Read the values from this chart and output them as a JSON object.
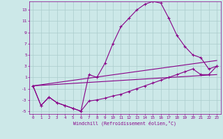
{
  "xlabel": "Windchill (Refroidissement éolien,°C)",
  "bg_color": "#cce8e8",
  "line_color": "#880088",
  "grid_color": "#aacccc",
  "xlim": [
    -0.5,
    23.5
  ],
  "ylim": [
    -5.5,
    14.5
  ],
  "xticks": [
    0,
    1,
    2,
    3,
    4,
    5,
    6,
    7,
    8,
    9,
    10,
    11,
    12,
    13,
    14,
    15,
    16,
    17,
    18,
    19,
    20,
    21,
    22,
    23
  ],
  "yticks": [
    -5,
    -3,
    -1,
    1,
    3,
    5,
    7,
    9,
    11,
    13
  ],
  "hours": [
    0,
    1,
    2,
    3,
    4,
    5,
    6,
    7,
    8,
    9,
    10,
    11,
    12,
    13,
    14,
    15,
    16,
    17,
    18,
    19,
    20,
    21,
    22,
    23
  ],
  "line1": [
    -0.5,
    -4.0,
    -2.5,
    -3.5,
    -4.0,
    -4.5,
    -5.0,
    1.5,
    1.0,
    3.5,
    7.0,
    10.0,
    11.5,
    13.0,
    14.0,
    14.5,
    14.2,
    11.5,
    8.5,
    6.5,
    5.0,
    4.5,
    2.5,
    3.0
  ],
  "line2": [
    -0.5,
    -4.0,
    -2.5,
    -3.5,
    -4.0,
    -4.5,
    -5.0,
    -3.2,
    -3.0,
    -2.7,
    -2.3,
    -2.0,
    -1.5,
    -1.0,
    -0.5,
    0.0,
    0.5,
    1.0,
    1.5,
    2.0,
    2.5,
    1.5,
    1.5,
    3.0
  ],
  "line3_x": [
    0,
    23
  ],
  "line3_y": [
    -0.5,
    4.0
  ],
  "line4_x": [
    0,
    23
  ],
  "line4_y": [
    -0.5,
    1.5
  ]
}
